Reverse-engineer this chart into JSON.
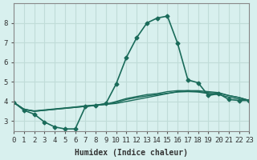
{
  "xlabel": "Humidex (Indice chaleur)",
  "ylabel": "",
  "bg_color": "#d8f0ee",
  "grid_color": "#c0dcd8",
  "line_color": "#1a6b5a",
  "xlim": [
    0,
    23
  ],
  "ylim": [
    2.5,
    9.0
  ],
  "yticks": [
    3,
    4,
    5,
    6,
    7,
    8
  ],
  "xticks": [
    0,
    1,
    2,
    3,
    4,
    5,
    6,
    7,
    8,
    9,
    10,
    11,
    12,
    13,
    14,
    15,
    16,
    17,
    18,
    19,
    20,
    21,
    22,
    23
  ],
  "lines": [
    {
      "x": [
        0,
        1,
        2,
        3,
        4,
        5,
        6,
        7,
        8,
        9,
        10,
        11,
        12,
        13,
        14,
        15,
        16,
        17,
        18,
        19,
        20,
        21,
        22,
        23
      ],
      "y": [
        3.95,
        3.55,
        3.35,
        2.95,
        2.7,
        2.6,
        2.6,
        3.75,
        3.8,
        3.9,
        4.9,
        6.25,
        7.25,
        8.0,
        8.25,
        8.35,
        6.95,
        5.1,
        4.95,
        4.3,
        4.4,
        4.1,
        4.05,
        4.05
      ],
      "marker": "D",
      "markersize": 2.5,
      "linewidth": 1.2
    },
    {
      "x": [
        0,
        1,
        2,
        3,
        4,
        5,
        6,
        7,
        8,
        9,
        10,
        11,
        12,
        13,
        14,
        15,
        16,
        17,
        18,
        19,
        20,
        21,
        22,
        23
      ],
      "y": [
        3.95,
        3.6,
        3.5,
        3.55,
        3.6,
        3.65,
        3.7,
        3.75,
        3.8,
        3.85,
        3.9,
        4.0,
        4.1,
        4.2,
        4.3,
        4.4,
        4.5,
        4.55,
        4.55,
        4.5,
        4.45,
        4.3,
        4.2,
        4.05
      ],
      "marker": null,
      "markersize": 0,
      "linewidth": 1.0
    },
    {
      "x": [
        0,
        1,
        2,
        3,
        4,
        5,
        6,
        7,
        8,
        9,
        10,
        11,
        12,
        13,
        14,
        15,
        16,
        17,
        18,
        19,
        20,
        21,
        22,
        23
      ],
      "y": [
        3.95,
        3.6,
        3.5,
        3.55,
        3.6,
        3.65,
        3.7,
        3.75,
        3.8,
        3.85,
        4.0,
        4.15,
        4.25,
        4.35,
        4.4,
        4.5,
        4.55,
        4.55,
        4.5,
        4.45,
        4.42,
        4.3,
        4.2,
        4.05
      ],
      "marker": null,
      "markersize": 0,
      "linewidth": 1.0
    },
    {
      "x": [
        0,
        1,
        2,
        3,
        4,
        5,
        6,
        7,
        8,
        9,
        10,
        11,
        12,
        13,
        14,
        15,
        16,
        17,
        18,
        19,
        20,
        21,
        22,
        23
      ],
      "y": [
        3.95,
        3.6,
        3.52,
        3.57,
        3.62,
        3.67,
        3.72,
        3.78,
        3.82,
        3.87,
        3.95,
        4.1,
        4.2,
        4.28,
        4.35,
        4.42,
        4.48,
        4.5,
        4.48,
        4.4,
        4.35,
        4.22,
        4.12,
        4.05
      ],
      "marker": null,
      "markersize": 0,
      "linewidth": 1.0
    }
  ]
}
